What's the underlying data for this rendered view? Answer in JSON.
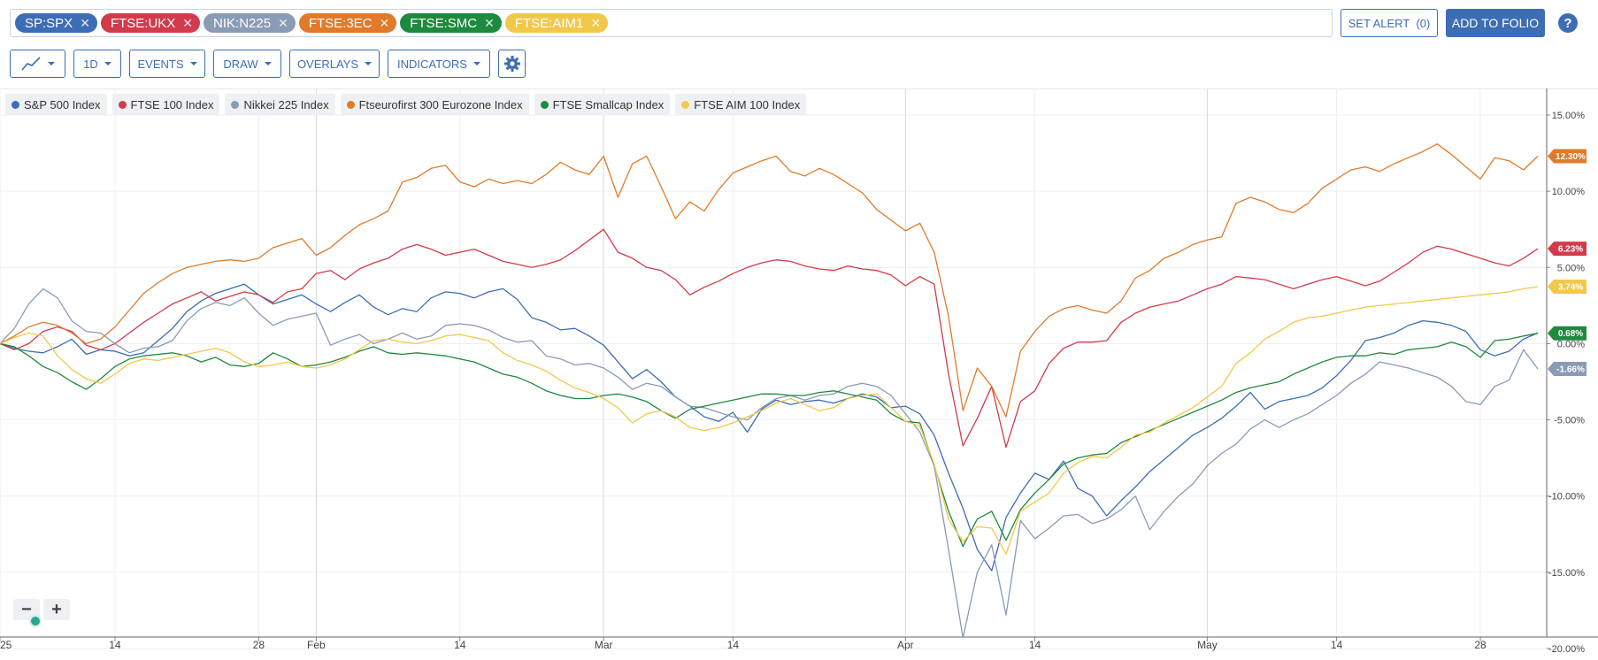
{
  "symbols": [
    {
      "label": "SP:SPX",
      "color": "#3d6db5"
    },
    {
      "label": "FTSE:UKX",
      "color": "#d13b4b"
    },
    {
      "label": "NIK:N225",
      "color": "#8a9bb5"
    },
    {
      "label": "FTSE:3EC",
      "color": "#e07b2b"
    },
    {
      "label": "FTSE:SMC",
      "color": "#1e8a3e"
    },
    {
      "label": "FTSE:AIM1",
      "color": "#f2c84b"
    }
  ],
  "header": {
    "set_alert": "SET ALERT",
    "alert_count": "(0)",
    "add_to_folio": "ADD TO FOLIO",
    "help": "?"
  },
  "toolbar": {
    "interval": "1D",
    "events": "EVENTS",
    "draw": "DRAW",
    "overlays": "OVERLAYS",
    "indicators": "INDICATORS"
  },
  "zoom": {
    "minus": "−",
    "plus": "+"
  },
  "chart_data": {
    "type": "line",
    "y_unit": "%",
    "ylim": [
      -20,
      15
    ],
    "y_ticks": [
      "15.00%",
      "10.00%",
      "5.00%",
      "0.00%",
      "-5.00%",
      "-10.00%",
      "-15.00%",
      "-20.00%"
    ],
    "x_ticks": [
      "25",
      "14",
      "28",
      "Feb",
      "14",
      "Mar",
      "14",
      "Apr",
      "14",
      "May",
      "14",
      "28"
    ],
    "x_tick_index": [
      0,
      8,
      18,
      22,
      32,
      42,
      51,
      63,
      72,
      84,
      93,
      103
    ],
    "n_points": 108,
    "grid": true,
    "legend_position": "top-left",
    "series": [
      {
        "name": "S&P 500 Index",
        "color": "#3d6db5",
        "last_label": null,
        "values": [
          0.0,
          -0.3,
          -0.5,
          -0.6,
          -0.2,
          0.3,
          -0.7,
          -0.4,
          -0.5,
          -0.8,
          -0.6,
          0.2,
          1.0,
          2.1,
          2.8,
          3.3,
          3.6,
          3.9,
          3.2,
          2.6,
          2.9,
          3.2,
          2.6,
          2.1,
          2.7,
          3.2,
          2.4,
          1.9,
          2.3,
          2.1,
          3.0,
          3.4,
          3.3,
          3.0,
          3.4,
          3.6,
          2.9,
          1.7,
          1.4,
          0.9,
          1.0,
          0.5,
          -0.1,
          -1.2,
          -2.3,
          -1.7,
          -2.5,
          -3.5,
          -4.1,
          -4.8,
          -5.1,
          -4.5,
          -5.8,
          -4.3,
          -3.7,
          -4.0,
          -3.8,
          -3.7,
          -3.9,
          -3.6,
          -3.3,
          -3.5,
          -4.2,
          -4.1,
          -4.6,
          -6.0,
          -8.5,
          -10.8,
          -13.5,
          -14.9,
          -11.4,
          -9.8,
          -8.5,
          -8.9,
          -7.7,
          -9.5,
          -10.0,
          -11.3,
          -10.3,
          -9.4,
          -8.4,
          -7.6,
          -6.8,
          -6.0,
          -5.5,
          -4.9,
          -4.1,
          -3.2,
          -4.3,
          -3.8,
          -3.6,
          -3.4,
          -2.9,
          -2.1,
          -1.1,
          0.2,
          0.4,
          0.7,
          1.2,
          1.5,
          1.4,
          1.2,
          0.8,
          -0.4,
          -0.8,
          -0.5,
          0.3,
          0.7
        ]
      },
      {
        "name": "FTSE 100 Index",
        "color": "#d13b4b",
        "last_label": "6.23%",
        "values": [
          0.0,
          -0.4,
          0.0,
          0.8,
          1.1,
          0.8,
          -0.1,
          -0.4,
          0.0,
          0.7,
          1.4,
          2.0,
          2.6,
          3.0,
          3.4,
          2.8,
          3.1,
          3.4,
          3.2,
          2.7,
          3.4,
          3.6,
          4.6,
          4.8,
          4.2,
          4.9,
          5.3,
          5.6,
          6.2,
          6.5,
          6.2,
          5.8,
          6.0,
          6.2,
          5.8,
          5.4,
          5.2,
          5.0,
          5.2,
          5.5,
          6.1,
          6.8,
          7.5,
          6.0,
          5.6,
          5.0,
          4.8,
          4.2,
          3.2,
          3.7,
          4.1,
          4.6,
          5.0,
          5.3,
          5.5,
          5.4,
          5.1,
          4.9,
          4.8,
          5.1,
          4.9,
          4.8,
          4.5,
          3.8,
          4.4,
          3.9,
          -2.0,
          -6.7,
          -4.9,
          -2.8,
          -6.8,
          -3.8,
          -3.1,
          -1.3,
          -0.3,
          0.1,
          0.1,
          0.2,
          1.4,
          2.0,
          2.4,
          2.6,
          2.8,
          3.2,
          3.6,
          3.9,
          4.4,
          4.3,
          4.2,
          3.9,
          3.6,
          3.9,
          4.2,
          4.4,
          4.1,
          3.8,
          4.1,
          4.7,
          5.3,
          6.0,
          6.4,
          6.2,
          5.9,
          5.6,
          5.3,
          5.1,
          5.6,
          6.23
        ]
      },
      {
        "name": "Nikkei 225 Index",
        "color": "#8a9bb5",
        "last_label": "-1.66%",
        "values": [
          0.0,
          1.0,
          2.6,
          3.6,
          3.0,
          1.5,
          0.8,
          0.7,
          0.0,
          -0.6,
          -0.3,
          -0.2,
          0.2,
          1.5,
          2.3,
          2.7,
          2.5,
          3.0,
          2.0,
          1.2,
          1.6,
          1.8,
          2.0,
          -0.1,
          0.3,
          0.6,
          0.0,
          0.3,
          0.7,
          0.3,
          0.5,
          1.2,
          1.3,
          1.2,
          0.9,
          0.4,
          0.1,
          0.2,
          -0.8,
          -1.0,
          -1.4,
          -1.3,
          -1.6,
          -2.2,
          -3.0,
          -2.6,
          -2.8,
          -3.5,
          -4.1,
          -4.2,
          -4.5,
          -4.8,
          -5.0,
          -4.2,
          -3.6,
          -3.4,
          -3.7,
          -3.4,
          -3.3,
          -2.8,
          -2.6,
          -2.8,
          -3.4,
          -4.6,
          -5.8,
          -8.0,
          -13.5,
          -19.3,
          -15.0,
          -13.2,
          -17.8,
          -11.6,
          -12.8,
          -12.1,
          -11.3,
          -11.2,
          -11.8,
          -11.5,
          -10.9,
          -10.0,
          -12.2,
          -11.0,
          -10.0,
          -9.2,
          -8.0,
          -7.2,
          -6.6,
          -5.6,
          -5.0,
          -5.5,
          -5.0,
          -4.6,
          -4.0,
          -3.4,
          -2.6,
          -2.0,
          -1.2,
          -1.4,
          -1.6,
          -1.9,
          -2.2,
          -2.8,
          -3.8,
          -4.0,
          -2.8,
          -2.4,
          -0.4,
          -1.66
        ]
      },
      {
        "name": "Ftseurofirst 300 Eurozone Index",
        "color": "#e07b2b",
        "last_label": "12.30%",
        "values": [
          0.0,
          0.5,
          1.1,
          1.4,
          1.2,
          0.7,
          0.0,
          0.3,
          1.1,
          2.2,
          3.3,
          4.0,
          4.6,
          5.0,
          5.2,
          5.4,
          5.5,
          5.4,
          5.6,
          6.3,
          6.6,
          6.9,
          5.8,
          6.3,
          7.1,
          7.8,
          8.2,
          8.7,
          10.6,
          10.9,
          11.5,
          11.7,
          10.6,
          10.3,
          10.8,
          10.5,
          10.7,
          10.5,
          11.1,
          11.9,
          11.4,
          11.1,
          12.3,
          9.6,
          11.8,
          12.3,
          10.3,
          8.2,
          9.3,
          8.7,
          10.1,
          11.2,
          11.6,
          12.0,
          12.3,
          11.3,
          11.0,
          11.5,
          11.1,
          10.5,
          9.9,
          8.8,
          8.1,
          7.4,
          7.9,
          6.0,
          1.8,
          -4.4,
          -1.6,
          -2.8,
          -4.8,
          -0.5,
          0.8,
          1.8,
          2.3,
          2.5,
          2.2,
          2.0,
          2.8,
          4.3,
          4.8,
          5.6,
          6.0,
          6.5,
          6.8,
          7.0,
          9.2,
          9.6,
          9.3,
          8.8,
          8.6,
          9.2,
          10.2,
          10.8,
          11.4,
          11.6,
          11.3,
          11.8,
          12.2,
          12.6,
          13.1,
          12.4,
          11.6,
          10.8,
          12.2,
          12.0,
          11.4,
          12.3
        ]
      },
      {
        "name": "FTSE Smallcap Index",
        "color": "#1e8a3e",
        "last_label": "0.68%",
        "values": [
          0.0,
          -0.2,
          -0.8,
          -1.5,
          -1.9,
          -2.5,
          -3.0,
          -2.3,
          -1.5,
          -1.0,
          -0.8,
          -0.7,
          -0.6,
          -0.8,
          -1.2,
          -0.9,
          -1.4,
          -1.5,
          -1.3,
          -0.6,
          -1.0,
          -1.5,
          -1.4,
          -1.2,
          -0.9,
          -0.5,
          -0.2,
          -0.6,
          -0.7,
          -0.6,
          -0.7,
          -0.8,
          -1.0,
          -1.2,
          -1.6,
          -2.0,
          -2.2,
          -2.6,
          -3.1,
          -3.4,
          -3.6,
          -3.6,
          -3.4,
          -3.3,
          -3.5,
          -3.8,
          -4.4,
          -4.9,
          -4.3,
          -4.1,
          -3.9,
          -3.7,
          -3.5,
          -3.3,
          -3.3,
          -3.4,
          -3.4,
          -3.2,
          -3.1,
          -3.3,
          -3.5,
          -3.7,
          -4.6,
          -5.1,
          -5.2,
          -8.0,
          -11.0,
          -13.3,
          -11.5,
          -11.0,
          -12.9,
          -10.9,
          -9.8,
          -8.9,
          -7.9,
          -7.5,
          -7.3,
          -7.2,
          -6.5,
          -6.1,
          -5.7,
          -5.3,
          -4.9,
          -4.5,
          -4.1,
          -3.7,
          -3.2,
          -2.9,
          -2.7,
          -2.5,
          -2.0,
          -1.6,
          -1.2,
          -0.9,
          -0.8,
          -0.8,
          -0.6,
          -0.7,
          -0.4,
          -0.3,
          -0.2,
          0.1,
          -0.2,
          -0.9,
          0.2,
          0.3,
          0.5,
          0.68
        ]
      },
      {
        "name": "FTSE AIM 100 Index",
        "color": "#f2c84b",
        "last_label": "3.74%",
        "values": [
          0.0,
          0.4,
          0.7,
          0.5,
          -0.8,
          -1.7,
          -2.3,
          -2.6,
          -2.0,
          -1.3,
          -1.0,
          -1.1,
          -0.9,
          -0.7,
          -0.5,
          -0.3,
          -0.6,
          -1.2,
          -1.5,
          -1.4,
          -1.2,
          -1.5,
          -1.6,
          -1.4,
          -1.0,
          -0.4,
          0.2,
          0.3,
          0.1,
          0.0,
          0.2,
          0.5,
          0.6,
          0.4,
          0.2,
          -0.6,
          -1.1,
          -1.4,
          -1.8,
          -2.4,
          -2.9,
          -3.2,
          -3.6,
          -4.2,
          -5.2,
          -4.6,
          -4.4,
          -4.8,
          -5.5,
          -5.7,
          -5.5,
          -5.2,
          -4.8,
          -4.4,
          -3.9,
          -3.6,
          -4.0,
          -4.4,
          -4.2,
          -3.6,
          -3.4,
          -3.3,
          -4.2,
          -5.1,
          -5.4,
          -7.9,
          -11.5,
          -13.0,
          -12.0,
          -12.1,
          -13.8,
          -11.0,
          -10.4,
          -9.8,
          -8.5,
          -7.8,
          -7.4,
          -7.5,
          -6.8,
          -6.0,
          -5.8,
          -5.2,
          -4.7,
          -4.2,
          -3.5,
          -2.8,
          -1.3,
          -0.6,
          0.3,
          0.8,
          1.4,
          1.7,
          1.8,
          2.0,
          2.2,
          2.4,
          2.5,
          2.6,
          2.7,
          2.8,
          2.9,
          3.0,
          3.1,
          3.2,
          3.3,
          3.4,
          3.6,
          3.74
        ]
      }
    ]
  }
}
